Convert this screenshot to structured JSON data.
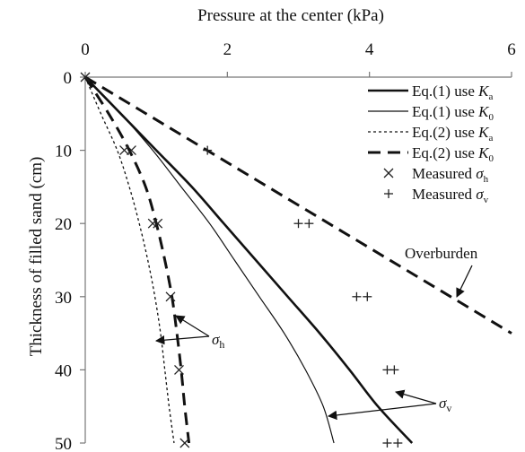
{
  "chart_data": {
    "type": "line",
    "xlabel": "Pressure at the center (kPa)",
    "ylabel": "Thickness of filled sand (cm)",
    "xlim": [
      0,
      6
    ],
    "ylim": [
      0,
      50
    ],
    "x_axis_position": "top",
    "y_axis_inverted": true,
    "xticks": [
      0,
      2,
      4,
      6
    ],
    "yticks": [
      0,
      10,
      20,
      30,
      40,
      50
    ],
    "grid": false,
    "legend_position": "top-right",
    "series": [
      {
        "name": "Eq.(1) use Ka",
        "label_main": "Eq.(1) use ",
        "label_symbol": "K",
        "label_sub": "a",
        "style": "solid-thick",
        "points": [
          [
            0,
            0
          ],
          [
            0.5,
            5
          ],
          [
            1.0,
            10
          ],
          [
            1.5,
            15
          ],
          [
            1.95,
            20
          ],
          [
            2.4,
            25
          ],
          [
            2.85,
            30
          ],
          [
            3.3,
            35
          ],
          [
            3.72,
            40
          ],
          [
            4.12,
            45
          ],
          [
            4.6,
            50
          ]
        ]
      },
      {
        "name": "Eq.(1) use K0",
        "label_main": "Eq.(1) use ",
        "label_symbol": "K",
        "label_sub": "0",
        "style": "solid-thin",
        "points": [
          [
            0,
            0
          ],
          [
            0.5,
            5
          ],
          [
            0.95,
            10
          ],
          [
            1.35,
            15
          ],
          [
            1.75,
            20
          ],
          [
            2.1,
            25
          ],
          [
            2.45,
            30
          ],
          [
            2.8,
            35
          ],
          [
            3.1,
            40
          ],
          [
            3.35,
            45
          ],
          [
            3.5,
            50
          ]
        ]
      },
      {
        "name": "Eq.(2) use Ka",
        "label_main": "Eq.(2) use ",
        "label_symbol": "K",
        "label_sub": "a",
        "style": "dotted-thin",
        "points": [
          [
            0,
            0
          ],
          [
            0.22,
            5
          ],
          [
            0.45,
            10
          ],
          [
            0.62,
            15
          ],
          [
            0.76,
            20
          ],
          [
            0.88,
            25
          ],
          [
            0.98,
            30
          ],
          [
            1.06,
            35
          ],
          [
            1.12,
            40
          ],
          [
            1.18,
            45
          ],
          [
            1.25,
            50
          ]
        ]
      },
      {
        "name": "Eq.(2) use K0",
        "label_main": "Eq.(2) use ",
        "label_symbol": "K",
        "label_sub": "0",
        "style": "dashed-thick",
        "points": [
          [
            0,
            0
          ],
          [
            0.33,
            5
          ],
          [
            0.62,
            10
          ],
          [
            0.85,
            15
          ],
          [
            1.0,
            20
          ],
          [
            1.12,
            25
          ],
          [
            1.22,
            30
          ],
          [
            1.29,
            35
          ],
          [
            1.35,
            40
          ],
          [
            1.4,
            45
          ],
          [
            1.46,
            50
          ]
        ]
      },
      {
        "name": "Overburden",
        "style": "dashed-thick",
        "points": [
          [
            0,
            0
          ],
          [
            6,
            35
          ]
        ]
      }
    ],
    "markers": [
      {
        "name": "Measured σh",
        "label_main": "Measured ",
        "label_symbol": "σ",
        "label_sub": "h",
        "marker": "x",
        "points": [
          [
            0,
            0
          ],
          [
            0.55,
            10
          ],
          [
            0.65,
            10
          ],
          [
            0.95,
            20
          ],
          [
            1.02,
            20
          ],
          [
            1.2,
            30
          ],
          [
            1.32,
            40
          ],
          [
            1.4,
            50
          ]
        ]
      },
      {
        "name": "Measured σv",
        "label_main": "Measured ",
        "label_symbol": "σ",
        "label_sub": "v",
        "marker": "+",
        "points": [
          [
            1.72,
            10
          ],
          [
            3.0,
            20
          ],
          [
            3.15,
            20
          ],
          [
            3.82,
            30
          ],
          [
            3.97,
            30
          ],
          [
            4.25,
            40
          ],
          [
            4.35,
            40
          ],
          [
            4.25,
            50
          ],
          [
            4.4,
            50
          ]
        ]
      }
    ],
    "annotations": [
      {
        "id": "overburden",
        "text": "Overburden"
      },
      {
        "id": "sigma-h",
        "symbol": "σ",
        "sub": "h"
      },
      {
        "id": "sigma-v",
        "symbol": "σ",
        "sub": "v"
      }
    ]
  }
}
